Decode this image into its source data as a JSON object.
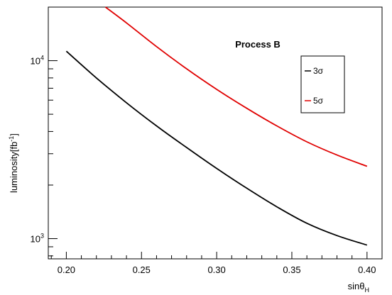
{
  "chart_data": {
    "type": "line",
    "title": "Process B",
    "xlabel": "sinθ",
    "xlabel_sub": "H",
    "ylabel": "luminosity[fb",
    "ylabel_sup": "-1",
    "ylabel_close": "]",
    "xlim": [
      0.188,
      0.41
    ],
    "ylim": [
      770,
      20000
    ],
    "yscale": "log",
    "grid": false,
    "legend_position": "top-right",
    "x_ticks": [
      {
        "value": 0.2,
        "label": "0.20"
      },
      {
        "value": 0.25,
        "label": "0.25"
      },
      {
        "value": 0.3,
        "label": "0.30"
      },
      {
        "value": 0.35,
        "label": "0.35"
      },
      {
        "value": 0.4,
        "label": "0.40"
      }
    ],
    "y_ticks": [
      {
        "value": 1000,
        "base": "10",
        "exp": "3"
      },
      {
        "value": 10000,
        "base": "10",
        "exp": "4"
      }
    ],
    "series": [
      {
        "name": "3σ",
        "color": "#000000",
        "x": [
          0.2,
          0.22,
          0.24,
          0.26,
          0.28,
          0.3,
          0.32,
          0.34,
          0.36,
          0.38,
          0.4
        ],
        "y": [
          11300,
          8000,
          5800,
          4300,
          3250,
          2480,
          1920,
          1510,
          1220,
          1040,
          920
        ]
      },
      {
        "name": "5σ",
        "color": "#e00000",
        "x": [
          0.226,
          0.24,
          0.26,
          0.28,
          0.3,
          0.32,
          0.34,
          0.36,
          0.38,
          0.4
        ],
        "y": [
          20000,
          16300,
          12000,
          9000,
          6900,
          5400,
          4300,
          3500,
          2950,
          2550
        ]
      }
    ]
  }
}
